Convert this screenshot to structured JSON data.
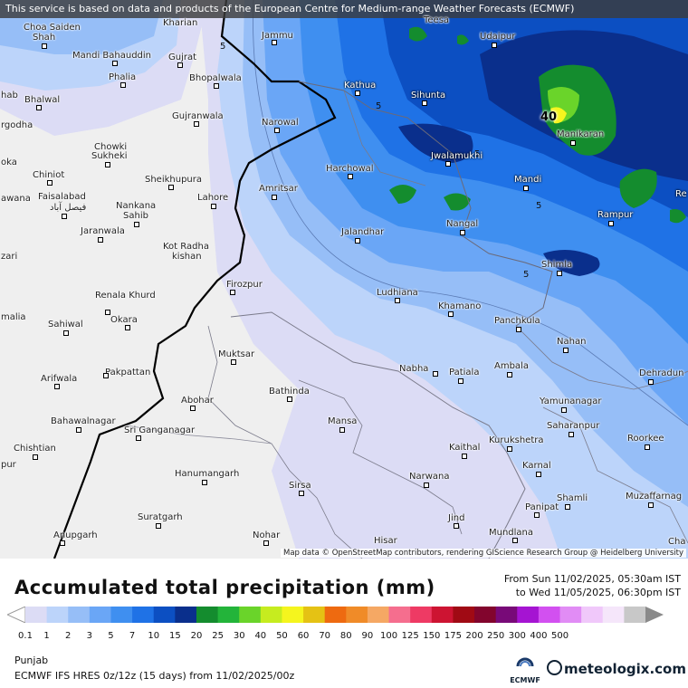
{
  "banner": "This service is based on data and products of the European Centre for Medium-range Weather Forecasts (ECMWF)",
  "attribution": "Map data © OpenStreetMap contributors, rendering GIScience Research Group @ Heidelberg University",
  "max_value": "40",
  "contour_value": "5",
  "cities": {
    "kharian": "Kharian",
    "jammu": "Jammu",
    "teesa": "Teesa",
    "udaipur": "Udaipur",
    "choa_saiden_shah_1": "Choa Saiden",
    "choa_saiden_shah_2": "Shah",
    "mandi_bahauddin": "Mandi Bahauddin",
    "gujrat": "Gujrat",
    "phalia": "Phalia",
    "bhopalwala": "Bhopalwala",
    "kathua": "Kathua",
    "sihunta": "Sihunta",
    "bhalwal": "Bhalwal",
    "sargodha": "rgodha",
    "gujranwala": "Gujranwala",
    "narowal": "Narowal",
    "manikaran": "Manikaran",
    "hab": "hab",
    "chowki_sukheki_1": "Chowki",
    "chowki_sukheki_2": "Sukheki",
    "jwalamukhi": "Jwalamukhi",
    "harchowal": "Harchowal",
    "oka": "oka",
    "chiniot": "Chiniot",
    "sheikhupura": "Sheikhupura",
    "mandi": "Mandi",
    "re": "Re",
    "awana": "awana",
    "faisalabad": "Faisalabad",
    "faisalabad_urdu": "فیصل آباد",
    "nankana_sahib_1": "Nankana",
    "nankana_sahib_2": "Sahib",
    "lahore": "Lahore",
    "amritsar": "Amritsar",
    "rampur": "Rampur",
    "nangal": "Nangal",
    "jaranwala": "Jaranwala",
    "jalandhar": "Jalandhar",
    "kot_radha_kishan_1": "Kot Radha",
    "kot_radha_kishan_2": "kishan",
    "zari": "zari",
    "shimla": "Shimla",
    "firozpur": "Firozpur",
    "ludhiana": "Ludhiana",
    "renala_khurd": "Renala Khurd",
    "kharar": "Khamano",
    "malia": "malia",
    "okara": "Okara",
    "panchkula": "Panchkula",
    "sahiwal": "Sahiwal",
    "nahan": "Nahan",
    "muktsar": "Muktsar",
    "nabha": "Nabha",
    "patiala": "Patiala",
    "ambala": "Ambala",
    "dehradun": "Dehradun",
    "arifwala": "Arifwala",
    "pakpattan": "Pakpattan",
    "bathinda": "Bathinda",
    "abohar": "Abohar",
    "yamunanagar": "Yamunanagar",
    "bahawalnagar": "Bahawalnagar",
    "mansa": "Mansa",
    "saharanpur": "Saharanpur",
    "sri_ganganagar": "Sri Ganganagar",
    "roorkee": "Roorkee",
    "kurukshetra": "Kurukshetra",
    "kaithal": "Kaithal",
    "chishtian": "Chishtian",
    "pur": "pur",
    "hanumangarh": "Hanumangarh",
    "narwana": "Narwana",
    "karnal": "Karnal",
    "sirsa": "Sirsa",
    "shamli": "Shamli",
    "muzaffarnagar": "Muzaffarnag",
    "panipat": "Panipat",
    "suratgarh": "Suratgarh",
    "jind": "Jind",
    "anupgarh": "Anupgarh",
    "nohar": "Nohar",
    "mundlana": "Mundlana",
    "hisar": "Hisar",
    "cha": "Cha"
  },
  "legend": {
    "title": "Accumulated total precipitation (mm)",
    "period_from": "From Sun 11/02/2025, 05:30am IST",
    "period_to": "to Wed 11/05/2025, 06:30pm IST",
    "ticks": [
      "0.1",
      "1",
      "2",
      "3",
      "5",
      "7",
      "10",
      "15",
      "20",
      "25",
      "30",
      "40",
      "50",
      "60",
      "70",
      "80",
      "90",
      "100",
      "125",
      "150",
      "175",
      "200",
      "250",
      "300",
      "400",
      "500"
    ],
    "colors": [
      "#dcdcf5",
      "#bcd4fa",
      "#96bef7",
      "#6aa6f6",
      "#3f8ff0",
      "#1f72e6",
      "#0c4fc2",
      "#0a2f8c",
      "#148c2e",
      "#23b43a",
      "#6ad42a",
      "#c6ec1f",
      "#f5f51e",
      "#e5c214",
      "#ee6a10",
      "#f08b28",
      "#f5a864",
      "#f56e8e",
      "#ee3a64",
      "#cd1432",
      "#a00a14",
      "#82052d",
      "#780a78",
      "#a514d2",
      "#d250f0",
      "#e18cf5",
      "#f0c8fa",
      "#f5e6fa",
      "#c8c8c8"
    ],
    "region": "Punjab",
    "model": "ECMWF IFS HRES 0z/12z (15 days) from 11/02/2025/00z",
    "ecmwf_label": "ECMWF",
    "brand": "meteologix.com"
  }
}
